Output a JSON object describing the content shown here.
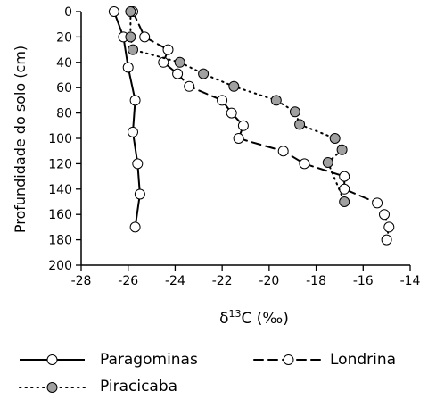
{
  "chart_data": {
    "type": "scatter",
    "xlabel": "δ¹³C (‰)",
    "xlabel_parts": {
      "delta": "δ",
      "sup": "13",
      "rest": "C (‰)"
    },
    "ylabel": "Profundidade do solo (cm)",
    "xlim": [
      -28,
      -14
    ],
    "ylim": [
      0,
      200
    ],
    "y_inverted": true,
    "x_ticks": [
      "-28",
      "-26",
      "-24",
      "-22",
      "-20",
      "-18",
      "-16",
      "-14"
    ],
    "y_ticks": [
      "0",
      "20",
      "40",
      "60",
      "80",
      "100",
      "120",
      "140",
      "160",
      "180",
      "200"
    ],
    "legend_position": "bottom",
    "series": [
      {
        "name": "Paragominas",
        "line_style": "solid",
        "marker_fill": "#ffffff",
        "points": [
          {
            "x": -26.6,
            "y": 0
          },
          {
            "x": -26.2,
            "y": 20
          },
          {
            "x": -26.0,
            "y": 44
          },
          {
            "x": -25.7,
            "y": 70
          },
          {
            "x": -25.8,
            "y": 95
          },
          {
            "x": -25.6,
            "y": 120
          },
          {
            "x": -25.5,
            "y": 144
          },
          {
            "x": -25.7,
            "y": 170
          }
        ]
      },
      {
        "name": "Londrina",
        "line_style": "dashed",
        "marker_fill": "#ffffff",
        "points": [
          {
            "x": -25.8,
            "y": 0
          },
          {
            "x": -25.3,
            "y": 20
          },
          {
            "x": -24.3,
            "y": 30
          },
          {
            "x": -24.5,
            "y": 40
          },
          {
            "x": -23.9,
            "y": 49
          },
          {
            "x": -23.4,
            "y": 59
          },
          {
            "x": -22.0,
            "y": 70
          },
          {
            "x": -21.6,
            "y": 80
          },
          {
            "x": -21.1,
            "y": 90
          },
          {
            "x": -21.3,
            "y": 100
          },
          {
            "x": -19.4,
            "y": 110
          },
          {
            "x": -18.5,
            "y": 120
          },
          {
            "x": -16.8,
            "y": 130
          },
          {
            "x": -16.8,
            "y": 140
          },
          {
            "x": -15.4,
            "y": 151
          },
          {
            "x": -15.1,
            "y": 160
          },
          {
            "x": -14.9,
            "y": 170
          },
          {
            "x": -15.0,
            "y": 180
          }
        ]
      },
      {
        "name": "Piracicaba",
        "line_style": "dotted",
        "marker_fill": "#a0a0a0",
        "points": [
          {
            "x": -25.9,
            "y": 0
          },
          {
            "x": -25.9,
            "y": 20
          },
          {
            "x": -25.8,
            "y": 30
          },
          {
            "x": -23.8,
            "y": 40
          },
          {
            "x": -22.8,
            "y": 49
          },
          {
            "x": -21.5,
            "y": 59
          },
          {
            "x": -19.7,
            "y": 70
          },
          {
            "x": -18.9,
            "y": 79
          },
          {
            "x": -18.7,
            "y": 89
          },
          {
            "x": -17.2,
            "y": 100
          },
          {
            "x": -16.9,
            "y": 109
          },
          {
            "x": -17.5,
            "y": 119
          },
          {
            "x": -16.8,
            "y": 150
          }
        ]
      }
    ]
  },
  "colors": {
    "line": "#000000",
    "open_marker": "#ffffff",
    "filled_marker": "#a0a0a0"
  }
}
